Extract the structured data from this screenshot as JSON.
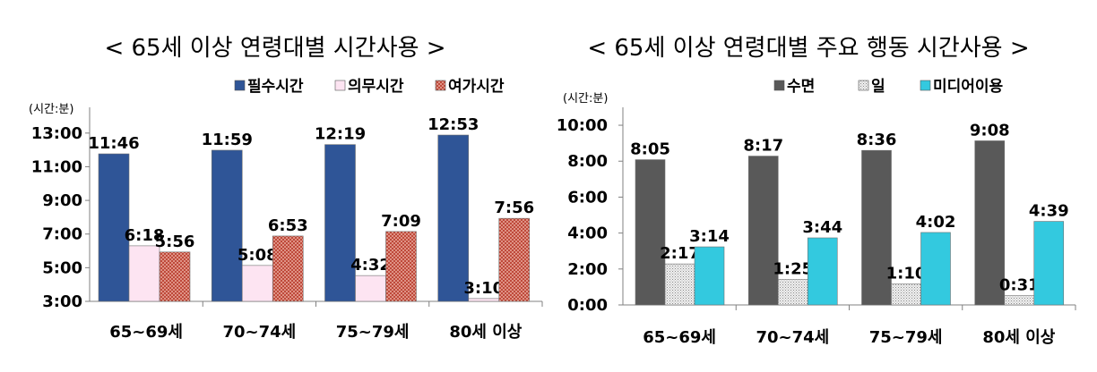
{
  "chart_data": [
    {
      "type": "bar",
      "title": "< 65세 이상 연령대별 시간사용 >",
      "unit_label": "(시간:분)",
      "categories": [
        "65~69세",
        "70~74세",
        "75~79세",
        "80세 이상"
      ],
      "yticks": [
        "3:00",
        "5:00",
        "7:00",
        "9:00",
        "11:00",
        "13:00"
      ],
      "ylim": [
        3,
        14
      ],
      "legend_position": "top-right",
      "series": [
        {
          "name": "필수시간",
          "color": "#2f5597",
          "pattern": "solid",
          "labels": [
            "11:46",
            "11:59",
            "12:19",
            "12:53"
          ],
          "values": [
            11.767,
            11.983,
            12.317,
            12.883
          ]
        },
        {
          "name": "의무시간",
          "color": "#fde4f2",
          "pattern": "solid",
          "labels": [
            "6:18",
            "5:08",
            "4:32",
            "3:10"
          ],
          "values": [
            6.3,
            5.133,
            4.533,
            3.167
          ]
        },
        {
          "name": "여가시간",
          "color": "#e07060",
          "pattern": "crosshatch",
          "labels": [
            "5:56",
            "6:53",
            "7:09",
            "7:56"
          ],
          "values": [
            5.933,
            6.883,
            7.15,
            7.933
          ]
        }
      ]
    },
    {
      "type": "bar",
      "title": "< 65세 이상 연령대별 주요 행동 시간사용 >",
      "unit_label": "(시간:분)",
      "categories": [
        "65~69세",
        "70~74세",
        "75~79세",
        "80세 이상"
      ],
      "yticks": [
        "0:00",
        "2:00",
        "4:00",
        "6:00",
        "8:00",
        "10:00"
      ],
      "ylim": [
        0,
        10.5
      ],
      "legend_position": "top-right",
      "series": [
        {
          "name": "수면",
          "color": "#595959",
          "pattern": "solid",
          "labels": [
            "8:05",
            "8:17",
            "8:36",
            "9:08"
          ],
          "values": [
            8.083,
            8.283,
            8.6,
            9.133
          ]
        },
        {
          "name": "일",
          "color": "#d9d9d9",
          "pattern": "dots",
          "labels": [
            "2:17",
            "1:25",
            "1:10",
            "0:31"
          ],
          "values": [
            2.283,
            1.417,
            1.167,
            0.517
          ]
        },
        {
          "name": "미디어이용",
          "color": "#33c9df",
          "pattern": "solid",
          "labels": [
            "3:14",
            "3:44",
            "4:02",
            "4:39"
          ],
          "values": [
            3.233,
            3.733,
            4.033,
            4.65
          ]
        }
      ]
    }
  ]
}
